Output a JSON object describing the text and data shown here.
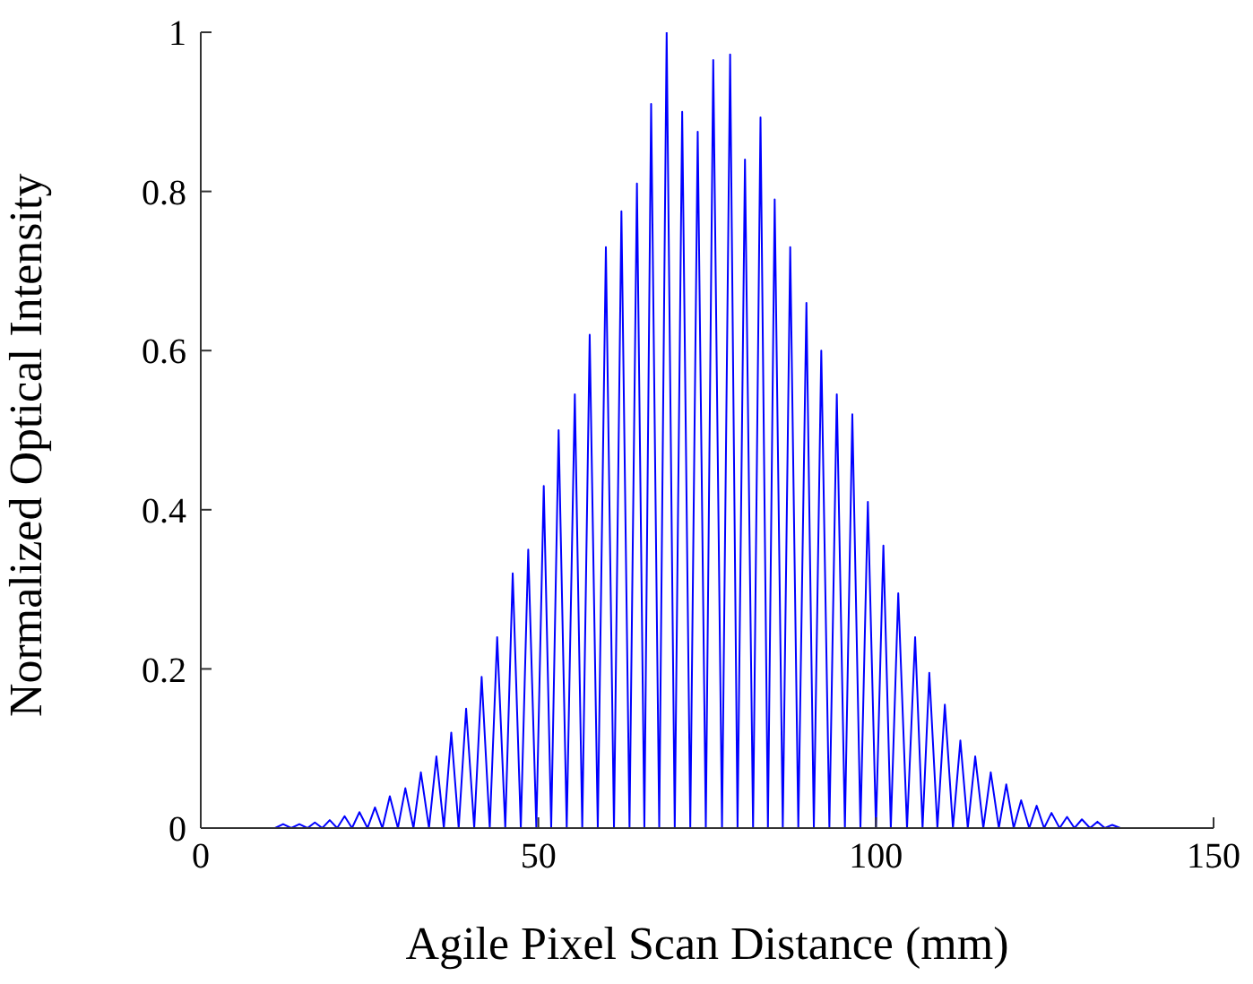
{
  "chart_data": {
    "type": "line",
    "xlabel": "Agile Pixel Scan Distance  (mm)",
    "ylabel": "Normalized Optical Intensity",
    "xlim": [
      0,
      150
    ],
    "xticks": [
      0,
      50,
      100,
      150
    ],
    "ylim": [
      0,
      1
    ],
    "yticks": [
      0,
      0.2,
      0.4,
      0.6,
      0.8,
      1
    ],
    "grid": false,
    "series": [
      {
        "color": "#0000ff",
        "x": [
          0,
          11.0,
          12.2,
          13.4,
          14.6,
          15.8,
          16.9,
          18.0,
          19.1,
          20.2,
          21.3,
          22.4,
          23.5,
          24.7,
          25.8,
          26.9,
          28.0,
          29.2,
          30.3,
          31.5,
          32.6,
          33.8,
          34.9,
          36.0,
          37.1,
          38.2,
          39.3,
          40.5,
          41.6,
          42.8,
          43.9,
          45.1,
          46.2,
          47.4,
          48.5,
          49.7,
          50.8,
          51.9,
          53.0,
          54.2,
          55.4,
          56.5,
          57.6,
          58.8,
          60.0,
          61.2,
          62.3,
          63.5,
          64.6,
          65.7,
          66.7,
          67.9,
          69.0,
          70.2,
          71.3,
          72.5,
          73.6,
          74.8,
          75.9,
          77.2,
          78.4,
          79.5,
          80.6,
          81.8,
          82.9,
          84.0,
          85.0,
          86.2,
          87.3,
          88.5,
          89.7,
          90.8,
          91.9,
          93.1,
          94.2,
          95.4,
          96.5,
          97.7,
          98.8,
          100.0,
          101.1,
          102.2,
          103.3,
          104.6,
          105.8,
          106.9,
          107.9,
          109.1,
          110.2,
          111.4,
          112.5,
          113.6,
          114.7,
          115.9,
          117.0,
          118.2,
          119.3,
          120.4,
          121.5,
          122.7,
          123.8,
          124.9,
          126.0,
          127.2,
          128.3,
          129.4,
          130.5,
          131.7,
          132.8,
          133.9,
          135.0,
          136.2
        ],
        "values": [
          0,
          0,
          0.005,
          0,
          0.005,
          0,
          0.007,
          0,
          0.01,
          0,
          0.015,
          0,
          0.02,
          0,
          0.026,
          0,
          0.04,
          0,
          0.05,
          0,
          0.07,
          0,
          0.09,
          0,
          0.12,
          0,
          0.15,
          0,
          0.19,
          0,
          0.24,
          0,
          0.32,
          0,
          0.35,
          0,
          0.43,
          0,
          0.5,
          0,
          0.545,
          0,
          0.62,
          0,
          0.73,
          0,
          0.775,
          0,
          0.81,
          0,
          0.91,
          0,
          1.0,
          0,
          0.9,
          0,
          0.875,
          0,
          0.965,
          0,
          0.972,
          0,
          0.84,
          0,
          0.893,
          0,
          0.79,
          0,
          0.73,
          0,
          0.66,
          0,
          0.6,
          0,
          0.545,
          0,
          0.52,
          0,
          0.41,
          0,
          0.355,
          0,
          0.295,
          0,
          0.24,
          0,
          0.195,
          0,
          0.155,
          0,
          0.11,
          0,
          0.09,
          0,
          0.07,
          0,
          0.055,
          0,
          0.035,
          0,
          0.028,
          0,
          0.019,
          0,
          0.014,
          0,
          0.011,
          0,
          0.008,
          0,
          0.004,
          0
        ]
      }
    ]
  }
}
